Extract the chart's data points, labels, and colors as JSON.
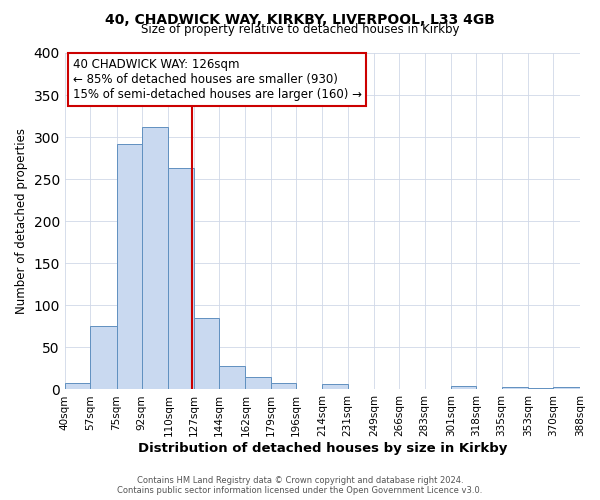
{
  "title1": "40, CHADWICK WAY, KIRKBY, LIVERPOOL, L33 4GB",
  "title2": "Size of property relative to detached houses in Kirkby",
  "xlabel": "Distribution of detached houses by size in Kirkby",
  "ylabel": "Number of detached properties",
  "bin_labels": [
    "40sqm",
    "57sqm",
    "75sqm",
    "92sqm",
    "110sqm",
    "127sqm",
    "144sqm",
    "162sqm",
    "179sqm",
    "196sqm",
    "214sqm",
    "231sqm",
    "249sqm",
    "266sqm",
    "283sqm",
    "301sqm",
    "318sqm",
    "335sqm",
    "353sqm",
    "370sqm",
    "388sqm"
  ],
  "bin_edges": [
    40,
    57,
    75,
    92,
    110,
    127,
    144,
    162,
    179,
    196,
    214,
    231,
    249,
    266,
    283,
    301,
    318,
    335,
    353,
    370,
    388
  ],
  "counts": [
    8,
    76,
    292,
    312,
    263,
    85,
    28,
    15,
    8,
    0,
    6,
    0,
    0,
    0,
    0,
    4,
    0,
    3,
    2,
    3
  ],
  "bar_facecolor": "#c9d9f0",
  "bar_edgecolor": "#6090c0",
  "property_line_x": 126,
  "property_line_color": "#cc0000",
  "annotation_text": "40 CHADWICK WAY: 126sqm\n← 85% of detached houses are smaller (930)\n15% of semi-detached houses are larger (160) →",
  "annotation_box_edgecolor": "#cc0000",
  "annotation_box_facecolor": "#ffffff",
  "ylim": [
    0,
    400
  ],
  "yticks": [
    0,
    50,
    100,
    150,
    200,
    250,
    300,
    350,
    400
  ],
  "footer1": "Contains HM Land Registry data © Crown copyright and database right 2024.",
  "footer2": "Contains public sector information licensed under the Open Government Licence v3.0.",
  "background_color": "#ffffff",
  "grid_color": "#d0d8e8"
}
